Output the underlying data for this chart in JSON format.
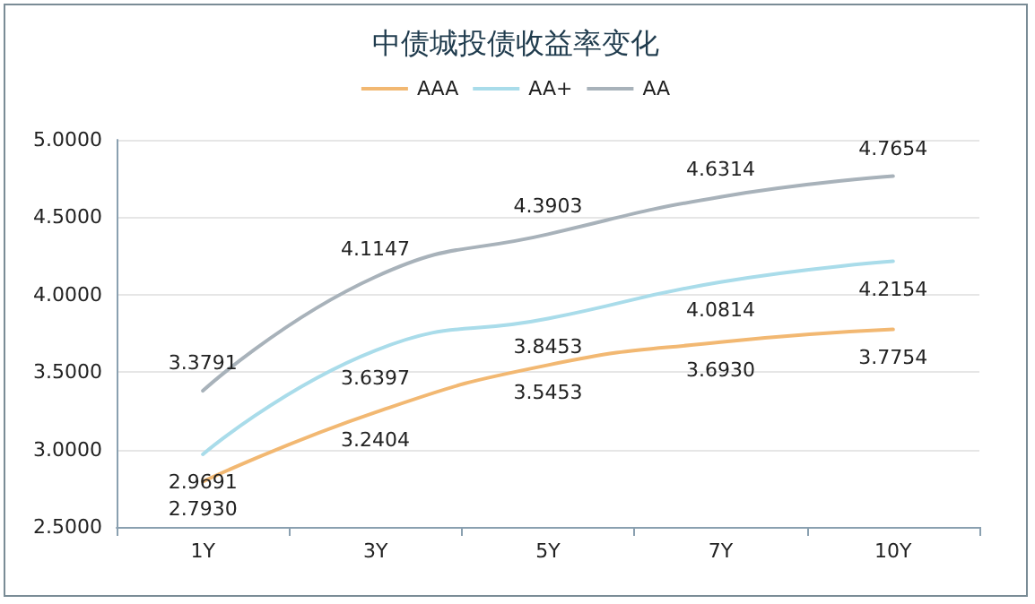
{
  "chart_data": {
    "type": "line",
    "title": "中债城投债收益率变化",
    "categories": [
      "1Y",
      "3Y",
      "5Y",
      "7Y",
      "10Y"
    ],
    "series": [
      {
        "name": "AAA",
        "color": "#f2b872",
        "values": [
          2.793,
          3.2404,
          3.5453,
          3.693,
          3.7754
        ],
        "value_labels": [
          "2.7930",
          "3.2404",
          "3.5453",
          "3.6930",
          "3.7754"
        ]
      },
      {
        "name": "AA+",
        "color": "#a9dcea",
        "values": [
          2.9691,
          3.6397,
          3.8453,
          4.0814,
          4.2154
        ],
        "value_labels": [
          "2.9691",
          "3.6397",
          "3.8453",
          "4.0814",
          "4.2154"
        ]
      },
      {
        "name": "AA",
        "color": "#a8b2ba",
        "values": [
          3.3791,
          4.1147,
          4.3903,
          4.6314,
          4.7654
        ],
        "value_labels": [
          "3.3791",
          "4.1147",
          "4.3903",
          "4.6314",
          "4.7654"
        ]
      }
    ],
    "ylim": [
      2.5,
      5.0
    ],
    "yticks": [
      {
        "value": 2.5,
        "label": "2.5000"
      },
      {
        "value": 3.0,
        "label": "3.0000"
      },
      {
        "value": 3.5,
        "label": "3.5000"
      },
      {
        "value": 4.0,
        "label": "4.0000"
      },
      {
        "value": 4.5,
        "label": "4.5000"
      },
      {
        "value": 5.0,
        "label": "5.0000"
      }
    ],
    "grid": "y",
    "legend": "top",
    "marker": "none",
    "line_style": "solid"
  }
}
